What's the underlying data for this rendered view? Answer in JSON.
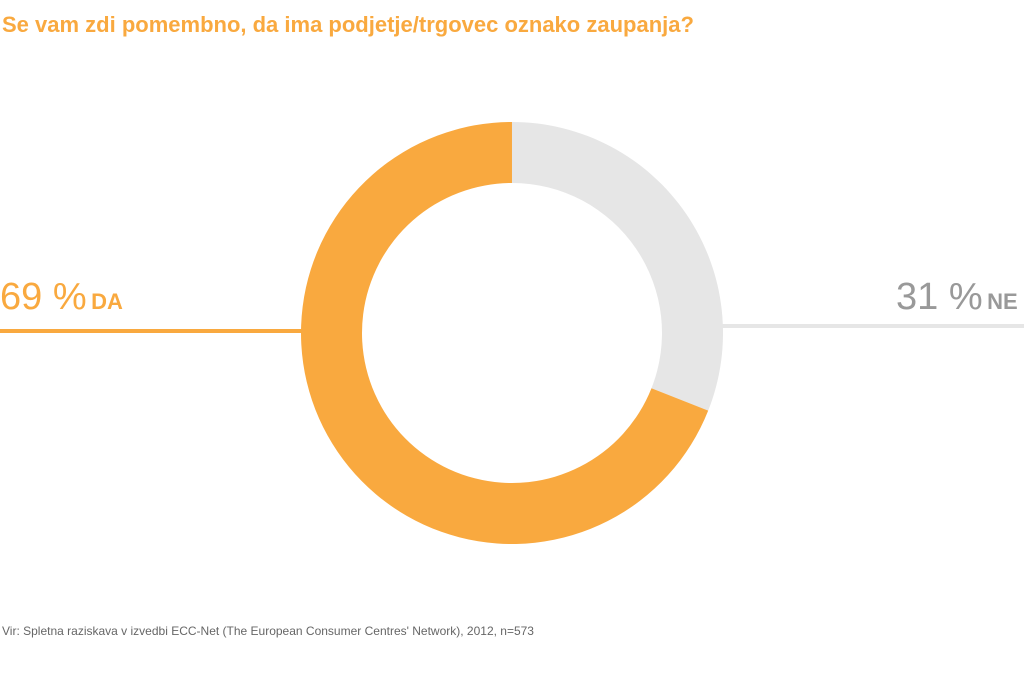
{
  "title": "Se vam zdi pomembno, da ima podjetje/trgovec oznako zaupanja?",
  "source": "Vir: Spletna raziskava v izvedbi ECC-Net (The European Consumer Centres' Network), 2012, n=573",
  "chart_data": {
    "type": "pie",
    "donut": true,
    "title": "Se vam zdi pomembno, da ima podjetje/trgovec oznako zaupanja?",
    "slices": [
      {
        "label": "DA",
        "value": 69,
        "display": "69 %",
        "color": "#F9A93F"
      },
      {
        "label": "NE",
        "value": 31,
        "display": "31 %",
        "color": "#E6E6E6"
      }
    ],
    "label_colors": {
      "DA": "#F9A93F",
      "NE": "#999999"
    }
  }
}
